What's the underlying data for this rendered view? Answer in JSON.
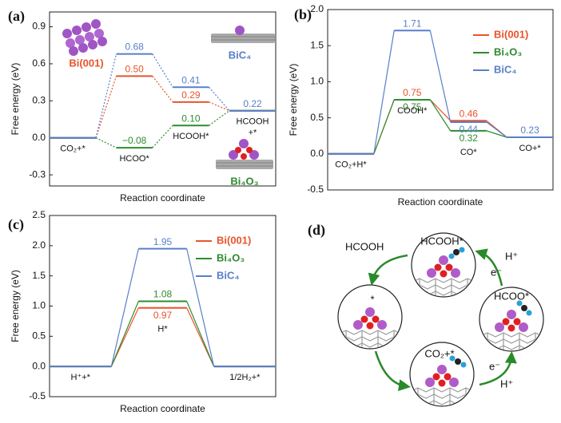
{
  "chart_data": [
    {
      "type": "line",
      "panel": "(a)",
      "xlabel": "Reaction coordinate",
      "ylabel": "Free energy (eV)",
      "categories": [
        "CO₂+*",
        "HCOO*",
        "HCOOH*",
        "HCOOH\n+*"
      ],
      "ylim": [
        -0.39,
        1.02
      ],
      "yticks": [
        -0.3,
        {
          "value": 0,
          "label": "0.0"
        },
        0.3,
        0.6,
        0.9
      ],
      "connector": "dotted",
      "legend": "inline",
      "series": [
        {
          "name": "Bi(001)",
          "color": "#e8542c",
          "values": [
            0,
            0.5,
            0.29,
            0.22
          ],
          "value_labels": [
            null,
            "0.50",
            "0.29",
            null
          ]
        },
        {
          "name": "Bi₄O₃",
          "color": "#2e8b2e",
          "values": [
            0,
            -0.08,
            0.1,
            0.22
          ],
          "value_labels": [
            null,
            "−0.08",
            "0.10",
            null
          ]
        },
        {
          "name": "BiC₄",
          "color": "#5a7ec9",
          "values": [
            0,
            0.68,
            0.41,
            0.22
          ],
          "value_labels": [
            null,
            "0.68",
            "0.41",
            "0.22"
          ]
        }
      ]
    },
    {
      "type": "line",
      "panel": "(b)",
      "xlabel": "Reaction coordinate",
      "ylabel": "Free energy (eV)",
      "categories": [
        "CO₂+H*",
        "COOH*",
        "CO*",
        "CO+*"
      ],
      "ylim": [
        -0.5,
        2.0
      ],
      "yticks": [
        -0.5,
        {
          "value": 0,
          "label": "0.0"
        },
        0.5,
        {
          "value": 1,
          "label": "1.0"
        },
        1.5,
        {
          "value": 2,
          "label": "2.0"
        }
      ],
      "connector": "solid",
      "legend": "upper right",
      "series": [
        {
          "name": "Bi(001)",
          "color": "#e8542c",
          "values": [
            0,
            0.75,
            0.46,
            0.23
          ],
          "value_labels": [
            null,
            "0.75",
            "0.46",
            null
          ]
        },
        {
          "name": "Bi₄O₃",
          "color": "#2e8b2e",
          "values": [
            0,
            0.75,
            0.32,
            0.23
          ],
          "value_labels": [
            null,
            "0.75",
            "0.32",
            null
          ]
        },
        {
          "name": "BiC₄",
          "color": "#5a7ec9",
          "values": [
            0,
            1.71,
            0.44,
            0.23
          ],
          "value_labels": [
            null,
            "1.71",
            "0.44",
            "0.23"
          ]
        }
      ]
    },
    {
      "type": "line",
      "panel": "(c)",
      "xlabel": "Reaction coordinate",
      "ylabel": "Free energy (eV)",
      "categories": [
        "H⁺+*",
        "H*",
        "1/2H₂+*"
      ],
      "ylim": [
        -0.5,
        2.5
      ],
      "yticks": [
        -0.5,
        {
          "value": 0,
          "label": "0.0"
        },
        0.5,
        {
          "value": 1,
          "label": "1.0"
        },
        1.5,
        {
          "value": 2,
          "label": "2.0"
        },
        2.5
      ],
      "connector": "solid",
      "legend": "upper right",
      "series": [
        {
          "name": "Bi(001)",
          "color": "#e8542c",
          "values": [
            0,
            0.97,
            0
          ],
          "value_labels": [
            null,
            "0.97",
            null
          ]
        },
        {
          "name": "Bi₄O₃",
          "color": "#2e8b2e",
          "values": [
            0,
            1.08,
            0
          ],
          "value_labels": [
            null,
            "1.08",
            null
          ]
        },
        {
          "name": "BiC₄",
          "color": "#5a7ec9",
          "values": [
            0,
            1.95,
            0
          ],
          "value_labels": [
            null,
            "1.95",
            null
          ]
        }
      ]
    }
  ],
  "diagram": {
    "panel": "(d)",
    "product": "HCOOH",
    "intermediates": [
      "HCOOH*",
      "HCOO*",
      "CO₂+*",
      "*"
    ],
    "reagents": [
      "H⁺",
      "e⁻",
      "e⁻",
      "H⁺"
    ]
  }
}
